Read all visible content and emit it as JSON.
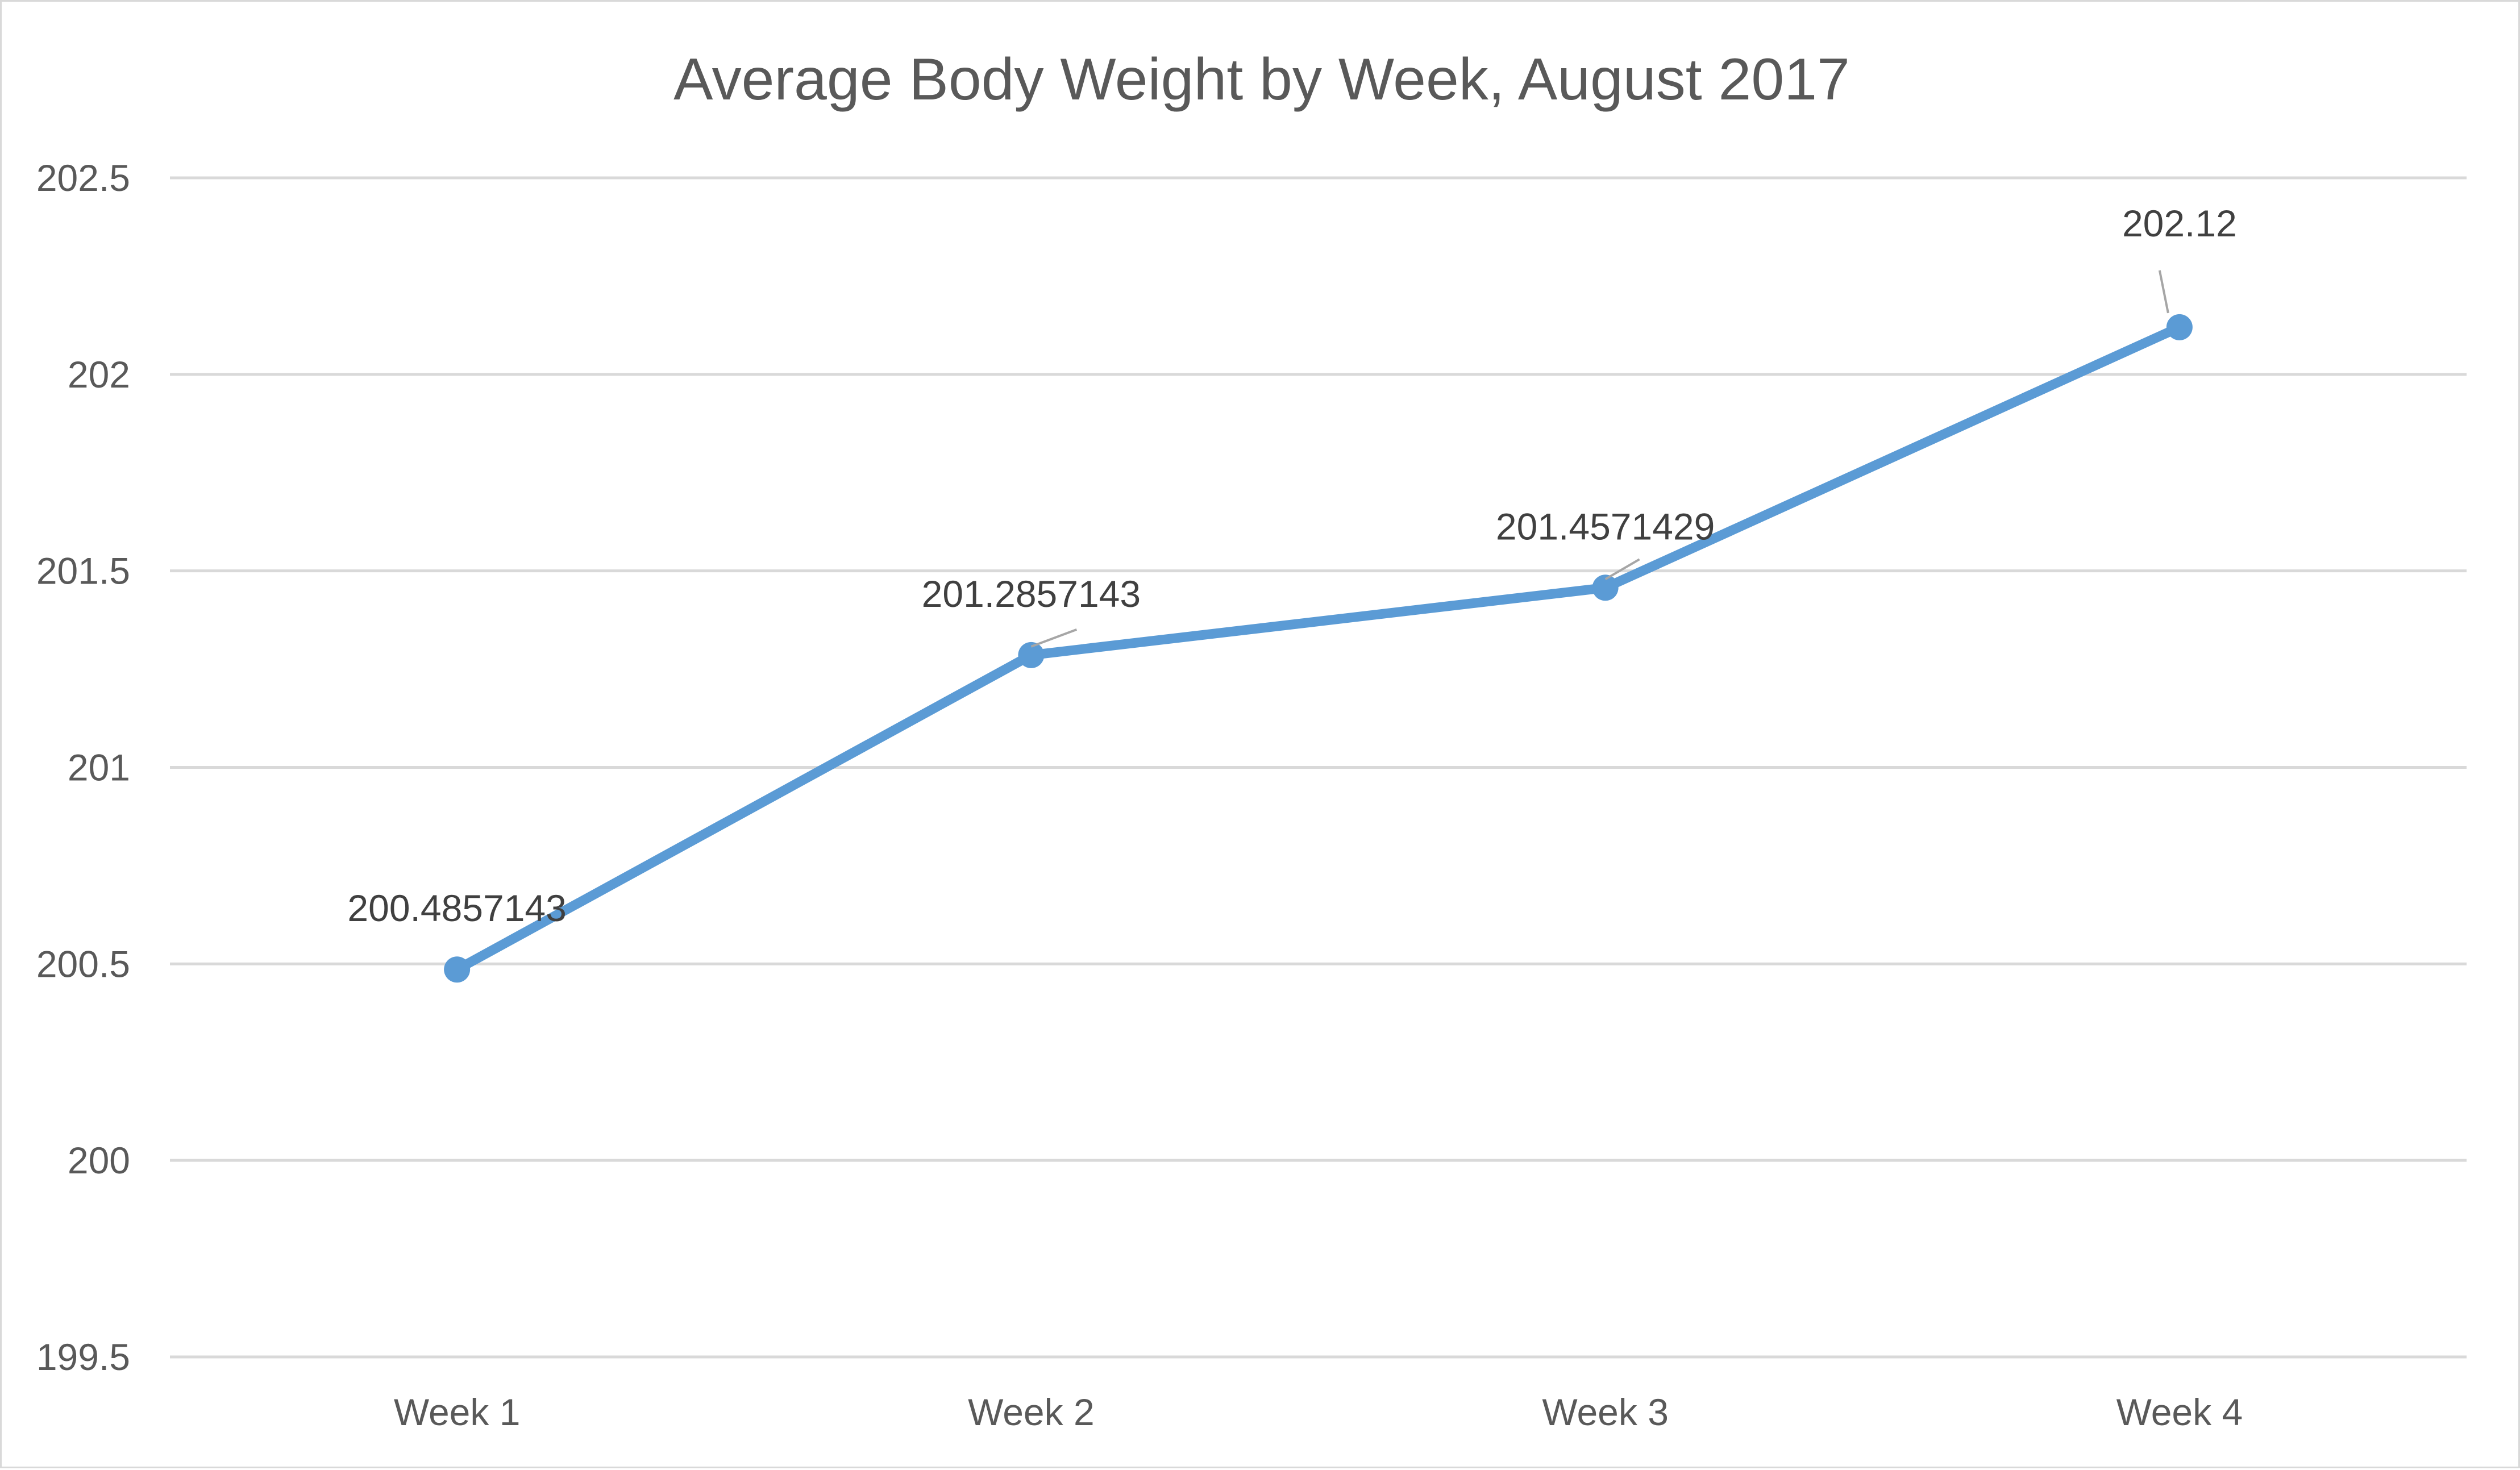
{
  "chart_data": {
    "type": "line",
    "title": "Average Body Weight by Week, August 2017",
    "xlabel": "",
    "ylabel": "",
    "categories": [
      "Week 1",
      "Week 2",
      "Week 3",
      "Week 4"
    ],
    "series": [
      {
        "values": [
          200.4857143,
          201.2857143,
          201.4571429,
          202.12
        ],
        "data_labels": [
          "200.4857143",
          "201.2857143",
          "201.4571429",
          "202.12"
        ],
        "color": "#5b9bd5"
      }
    ],
    "ylim": [
      199.5,
      202.5
    ],
    "yticks": [
      199.5,
      200,
      200.5,
      201,
      201.5,
      202,
      202.5
    ],
    "ytick_labels": [
      "199.5",
      "200",
      "200.5",
      "201",
      "201.5",
      "202",
      "202.5"
    ],
    "grid": true,
    "legend": "none"
  }
}
